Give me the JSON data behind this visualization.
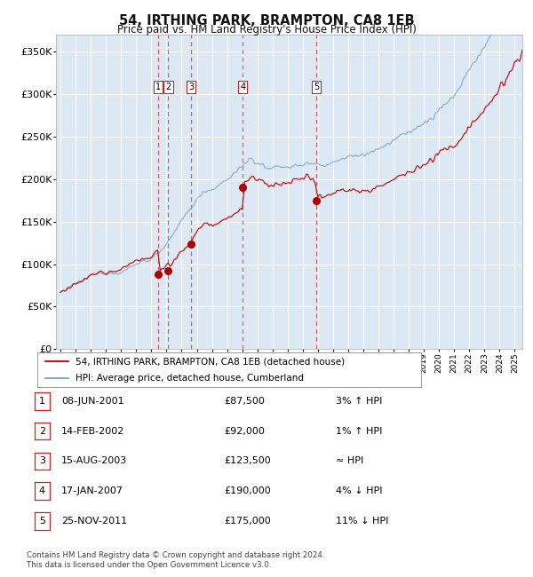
{
  "title": "54, IRTHING PARK, BRAMPTON, CA8 1EB",
  "subtitle": "Price paid vs. HM Land Registry's House Price Index (HPI)",
  "footer1": "Contains HM Land Registry data © Crown copyright and database right 2024.",
  "footer2": "This data is licensed under the Open Government Licence v3.0.",
  "legend_line1": "54, IRTHING PARK, BRAMPTON, CA8 1EB (detached house)",
  "legend_line2": "HPI: Average price, detached house, Cumberland",
  "ylabel_ticks": [
    "£0",
    "£50K",
    "£100K",
    "£150K",
    "£200K",
    "£250K",
    "£300K",
    "£350K"
  ],
  "ytick_vals": [
    0,
    50000,
    100000,
    150000,
    200000,
    250000,
    300000,
    350000
  ],
  "ylim": [
    0,
    370000
  ],
  "xlim_start": 1994.7,
  "xlim_end": 2025.5,
  "background_color": "#dce9f5",
  "grid_color": "#ffffff",
  "sale_dates": [
    2001.44,
    2002.12,
    2003.62,
    2007.04,
    2011.9
  ],
  "sale_prices": [
    87500,
    92000,
    123500,
    190000,
    175000
  ],
  "sale_labels": [
    "1",
    "2",
    "3",
    "4",
    "5"
  ],
  "vline_color": "#e84040",
  "dot_color": "#aa0000",
  "hpi_line_color": "#88aacc",
  "price_line_color": "#cc1111",
  "table_rows": [
    [
      "1",
      "08-JUN-2001",
      "£87,500",
      "3% ↑ HPI"
    ],
    [
      "2",
      "14-FEB-2002",
      "£92,000",
      "1% ↑ HPI"
    ],
    [
      "3",
      "15-AUG-2003",
      "£123,500",
      "≈ HPI"
    ],
    [
      "4",
      "17-JAN-2007",
      "£190,000",
      "4% ↓ HPI"
    ],
    [
      "5",
      "25-NOV-2011",
      "£175,000",
      "11% ↓ HPI"
    ]
  ]
}
